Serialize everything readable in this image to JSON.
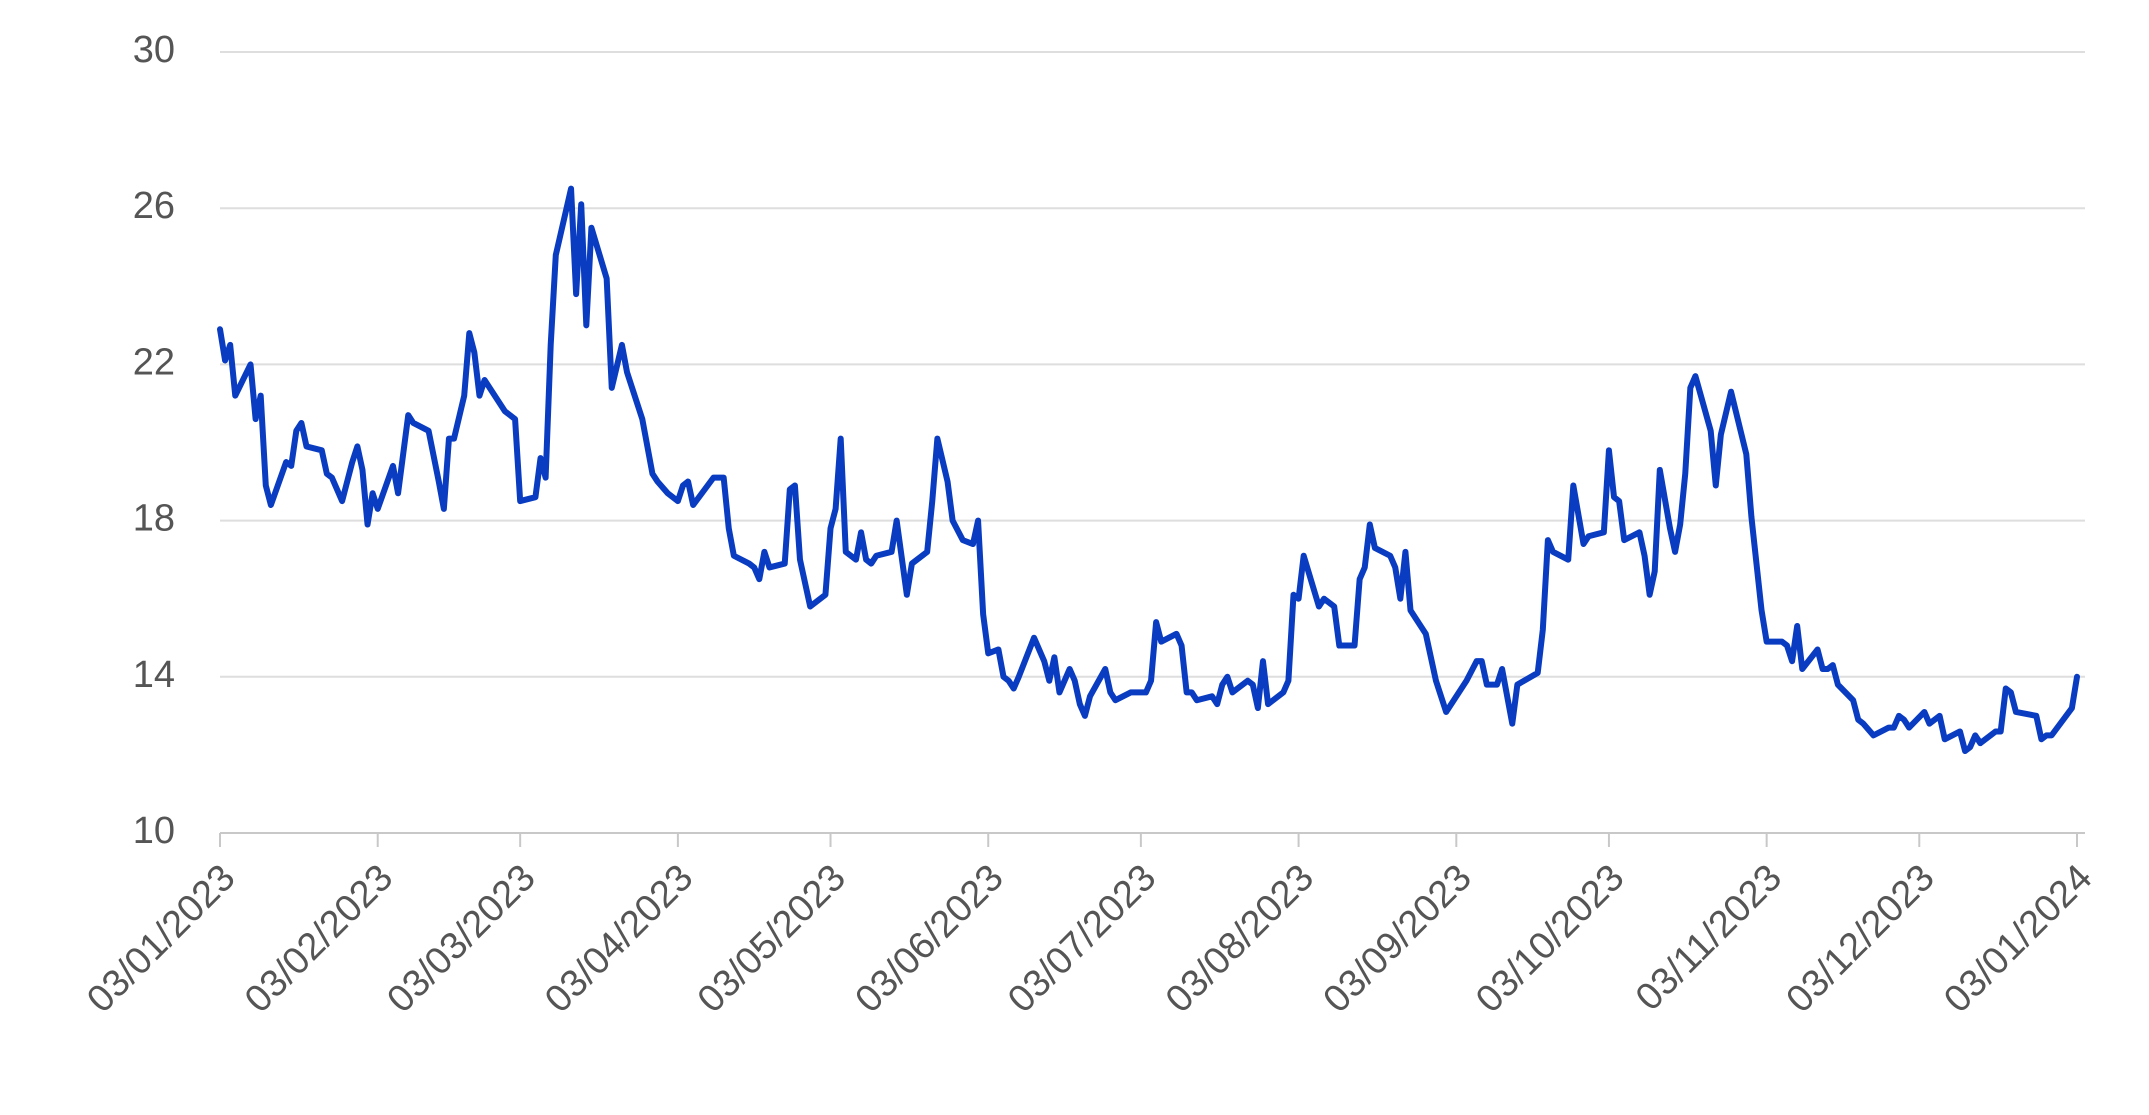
{
  "chart_data": {
    "type": "line",
    "color": "#0a3cc2",
    "grid": true,
    "x": [
      "03/01/2023",
      "04/01/2023",
      "05/01/2023",
      "06/01/2023",
      "09/01/2023",
      "10/01/2023",
      "11/01/2023",
      "12/01/2023",
      "13/01/2023",
      "16/01/2023",
      "17/01/2023",
      "18/01/2023",
      "19/01/2023",
      "20/01/2023",
      "23/01/2023",
      "24/01/2023",
      "25/01/2023",
      "27/01/2023",
      "29/01/2023",
      "30/01/2023",
      "31/01/2023",
      "01/02/2023",
      "02/02/2023",
      "03/02/2023",
      "06/02/2023",
      "07/02/2023",
      "09/02/2023",
      "10/02/2023",
      "13/02/2023",
      "15/02/2023",
      "16/02/2023",
      "17/02/2023",
      "18/02/2023",
      "20/02/2023",
      "21/02/2023",
      "22/02/2023",
      "23/02/2023",
      "24/02/2023",
      "28/02/2023",
      "02/03/2023",
      "03/03/2023",
      "06/03/2023",
      "07/03/2023",
      "08/03/2023",
      "09/03/2023",
      "10/03/2023",
      "13/03/2023",
      "14/03/2023",
      "15/03/2023",
      "16/03/2023",
      "17/03/2023",
      "20/03/2023",
      "21/03/2023",
      "23/03/2023",
      "24/03/2023",
      "27/03/2023",
      "29/03/2023",
      "30/03/2023",
      "01/04/2023",
      "03/04/2023",
      "04/04/2023",
      "05/04/2023",
      "06/04/2023",
      "10/04/2023",
      "12/04/2023",
      "13/04/2023",
      "14/04/2023",
      "17/04/2023",
      "18/04/2023",
      "19/04/2023",
      "20/04/2023",
      "21/04/2023",
      "24/04/2023",
      "25/04/2023",
      "26/04/2023",
      "27/04/2023",
      "29/04/2023",
      "02/05/2023",
      "03/05/2023",
      "04/05/2023",
      "05/05/2023",
      "06/05/2023",
      "08/05/2023",
      "09/05/2023",
      "10/05/2023",
      "11/05/2023",
      "12/05/2023",
      "15/05/2023",
      "16/05/2023",
      "18/05/2023",
      "19/05/2023",
      "22/05/2023",
      "23/05/2023",
      "24/05/2023",
      "26/05/2023",
      "27/05/2023",
      "29/05/2023",
      "31/05/2023",
      "01/06/2023",
      "02/06/2023",
      "03/06/2023",
      "05/06/2023",
      "06/06/2023",
      "07/06/2023",
      "08/06/2023",
      "09/06/2023",
      "12/06/2023",
      "14/06/2023",
      "15/06/2023",
      "16/06/2023",
      "17/06/2023",
      "19/06/2023",
      "20/06/2023",
      "21/06/2023",
      "22/06/2023",
      "23/06/2023",
      "26/06/2023",
      "27/06/2023",
      "28/06/2023",
      "01/07/2023",
      "04/07/2023",
      "05/07/2023",
      "06/07/2023",
      "07/07/2023",
      "10/07/2023",
      "11/07/2023",
      "12/07/2023",
      "13/07/2023",
      "14/07/2023",
      "17/07/2023",
      "18/07/2023",
      "19/07/2023",
      "20/07/2023",
      "21/07/2023",
      "24/07/2023",
      "25/07/2023",
      "26/07/2023",
      "27/07/2023",
      "28/07/2023",
      "31/07/2023",
      "01/08/2023",
      "02/08/2023",
      "03/08/2023",
      "04/08/2023",
      "07/08/2023",
      "08/08/2023",
      "10/08/2023",
      "11/08/2023",
      "14/08/2023",
      "15/08/2023",
      "16/08/2023",
      "17/08/2023",
      "18/08/2023",
      "21/08/2023",
      "22/08/2023",
      "23/08/2023",
      "24/08/2023",
      "25/08/2023",
      "28/08/2023",
      "29/08/2023",
      "30/08/2023",
      "01/09/2023",
      "05/09/2023",
      "07/09/2023",
      "08/09/2023",
      "09/09/2023",
      "11/09/2023",
      "12/09/2023",
      "14/09/2023",
      "15/09/2023",
      "19/09/2023",
      "20/09/2023",
      "21/09/2023",
      "22/09/2023",
      "25/09/2023",
      "26/09/2023",
      "28/09/2023",
      "29/09/2023",
      "02/10/2023",
      "03/10/2023",
      "04/10/2023",
      "05/10/2023",
      "06/10/2023",
      "09/10/2023",
      "10/10/2023",
      "11/10/2023",
      "12/10/2023",
      "13/10/2023",
      "15/10/2023",
      "16/10/2023",
      "17/10/2023",
      "18/10/2023",
      "19/10/2023",
      "20/10/2023",
      "23/10/2023",
      "24/10/2023",
      "25/10/2023",
      "27/10/2023",
      "30/10/2023",
      "31/10/2023",
      "02/11/2023",
      "03/11/2023",
      "06/11/2023",
      "07/11/2023",
      "08/11/2023",
      "09/11/2023",
      "10/11/2023",
      "13/11/2023",
      "14/11/2023",
      "15/11/2023",
      "16/11/2023",
      "17/11/2023",
      "20/11/2023",
      "21/11/2023",
      "22/11/2023",
      "24/11/2023",
      "27/11/2023",
      "28/11/2023",
      "29/11/2023",
      "30/11/2023",
      "01/12/2023",
      "04/12/2023",
      "05/12/2023",
      "07/12/2023",
      "08/12/2023",
      "11/12/2023",
      "12/12/2023",
      "13/12/2023",
      "14/12/2023",
      "15/12/2023",
      "18/12/2023",
      "19/12/2023",
      "20/12/2023",
      "21/12/2023",
      "22/12/2023",
      "26/12/2023",
      "27/12/2023",
      "28/12/2023",
      "29/12/2023",
      "02/01/2024",
      "03/01/2024"
    ],
    "values": [
      22.9,
      22.1,
      22.5,
      21.2,
      22.0,
      20.6,
      21.2,
      18.9,
      18.4,
      19.5,
      19.4,
      20.3,
      20.5,
      19.9,
      19.8,
      19.2,
      19.1,
      18.5,
      19.5,
      19.9,
      19.3,
      17.9,
      18.7,
      18.3,
      19.4,
      18.7,
      20.7,
      20.5,
      20.3,
      19.0,
      18.3,
      20.1,
      20.1,
      21.2,
      22.8,
      22.3,
      21.2,
      21.6,
      20.8,
      20.6,
      18.5,
      18.6,
      19.6,
      19.1,
      22.5,
      24.8,
      26.5,
      23.8,
      26.1,
      23.0,
      25.5,
      24.2,
      21.4,
      22.5,
      21.8,
      20.6,
      19.2,
      19.0,
      18.7,
      18.5,
      18.9,
      19.0,
      18.4,
      19.1,
      19.1,
      17.8,
      17.1,
      16.9,
      16.8,
      16.5,
      17.2,
      16.8,
      16.9,
      18.8,
      18.9,
      17.0,
      15.8,
      16.1,
      17.8,
      18.3,
      20.1,
      17.2,
      17.0,
      17.7,
      17.0,
      16.9,
      17.1,
      17.2,
      18.0,
      16.1,
      16.9,
      17.2,
      18.5,
      20.1,
      19.0,
      18.0,
      17.5,
      17.4,
      18.0,
      15.6,
      14.6,
      14.7,
      14.0,
      13.9,
      13.7,
      14.0,
      15.0,
      14.4,
      13.9,
      14.5,
      13.6,
      14.2,
      13.9,
      13.3,
      13.0,
      13.5,
      14.2,
      13.6,
      13.4,
      13.6,
      13.6,
      13.9,
      15.4,
      14.9,
      15.1,
      14.8,
      13.6,
      13.6,
      13.4,
      13.5,
      13.3,
      13.8,
      14.0,
      13.6,
      13.9,
      13.8,
      13.2,
      14.4,
      13.3,
      13.6,
      13.9,
      16.1,
      16.0,
      17.1,
      15.8,
      16.0,
      15.8,
      14.8,
      14.8,
      16.5,
      16.8,
      17.9,
      17.3,
      17.1,
      16.8,
      16.0,
      17.2,
      15.7,
      15.1,
      14.5,
      13.9,
      13.1,
      13.9,
      14.4,
      14.4,
      13.8,
      13.8,
      14.2,
      12.8,
      13.8,
      14.1,
      15.2,
      17.5,
      17.2,
      17.0,
      18.9,
      17.4,
      17.6,
      17.7,
      19.8,
      18.6,
      18.5,
      17.5,
      17.7,
      17.1,
      16.1,
      16.7,
      19.3,
      17.8,
      17.2,
      17.9,
      19.2,
      21.4,
      21.7,
      20.3,
      18.9,
      20.2,
      21.3,
      19.7,
      18.1,
      15.7,
      14.9,
      14.9,
      14.8,
      14.4,
      15.3,
      14.2,
      14.7,
      14.2,
      14.2,
      14.3,
      13.8,
      13.4,
      12.9,
      12.8,
      12.5,
      12.7,
      12.7,
      13.0,
      12.9,
      12.7,
      13.1,
      12.8,
      13.0,
      12.4,
      12.6,
      12.1,
      12.2,
      12.5,
      12.3,
      12.6,
      12.6,
      13.7,
      13.6,
      13.1,
      13.0,
      12.4,
      12.5,
      12.5,
      13.2,
      14.0
    ],
    "xlim": [
      "03/01/2023",
      "03/01/2024"
    ],
    "xticks": [
      "03/01/2023",
      "03/02/2023",
      "03/03/2023",
      "03/04/2023",
      "03/05/2023",
      "03/06/2023",
      "03/07/2023",
      "03/08/2023",
      "03/09/2023",
      "03/10/2023",
      "03/11/2023",
      "03/12/2023",
      "03/01/2024"
    ],
    "ylim": [
      10,
      30
    ],
    "yticks": [
      10,
      14,
      18,
      22,
      26,
      30
    ]
  }
}
